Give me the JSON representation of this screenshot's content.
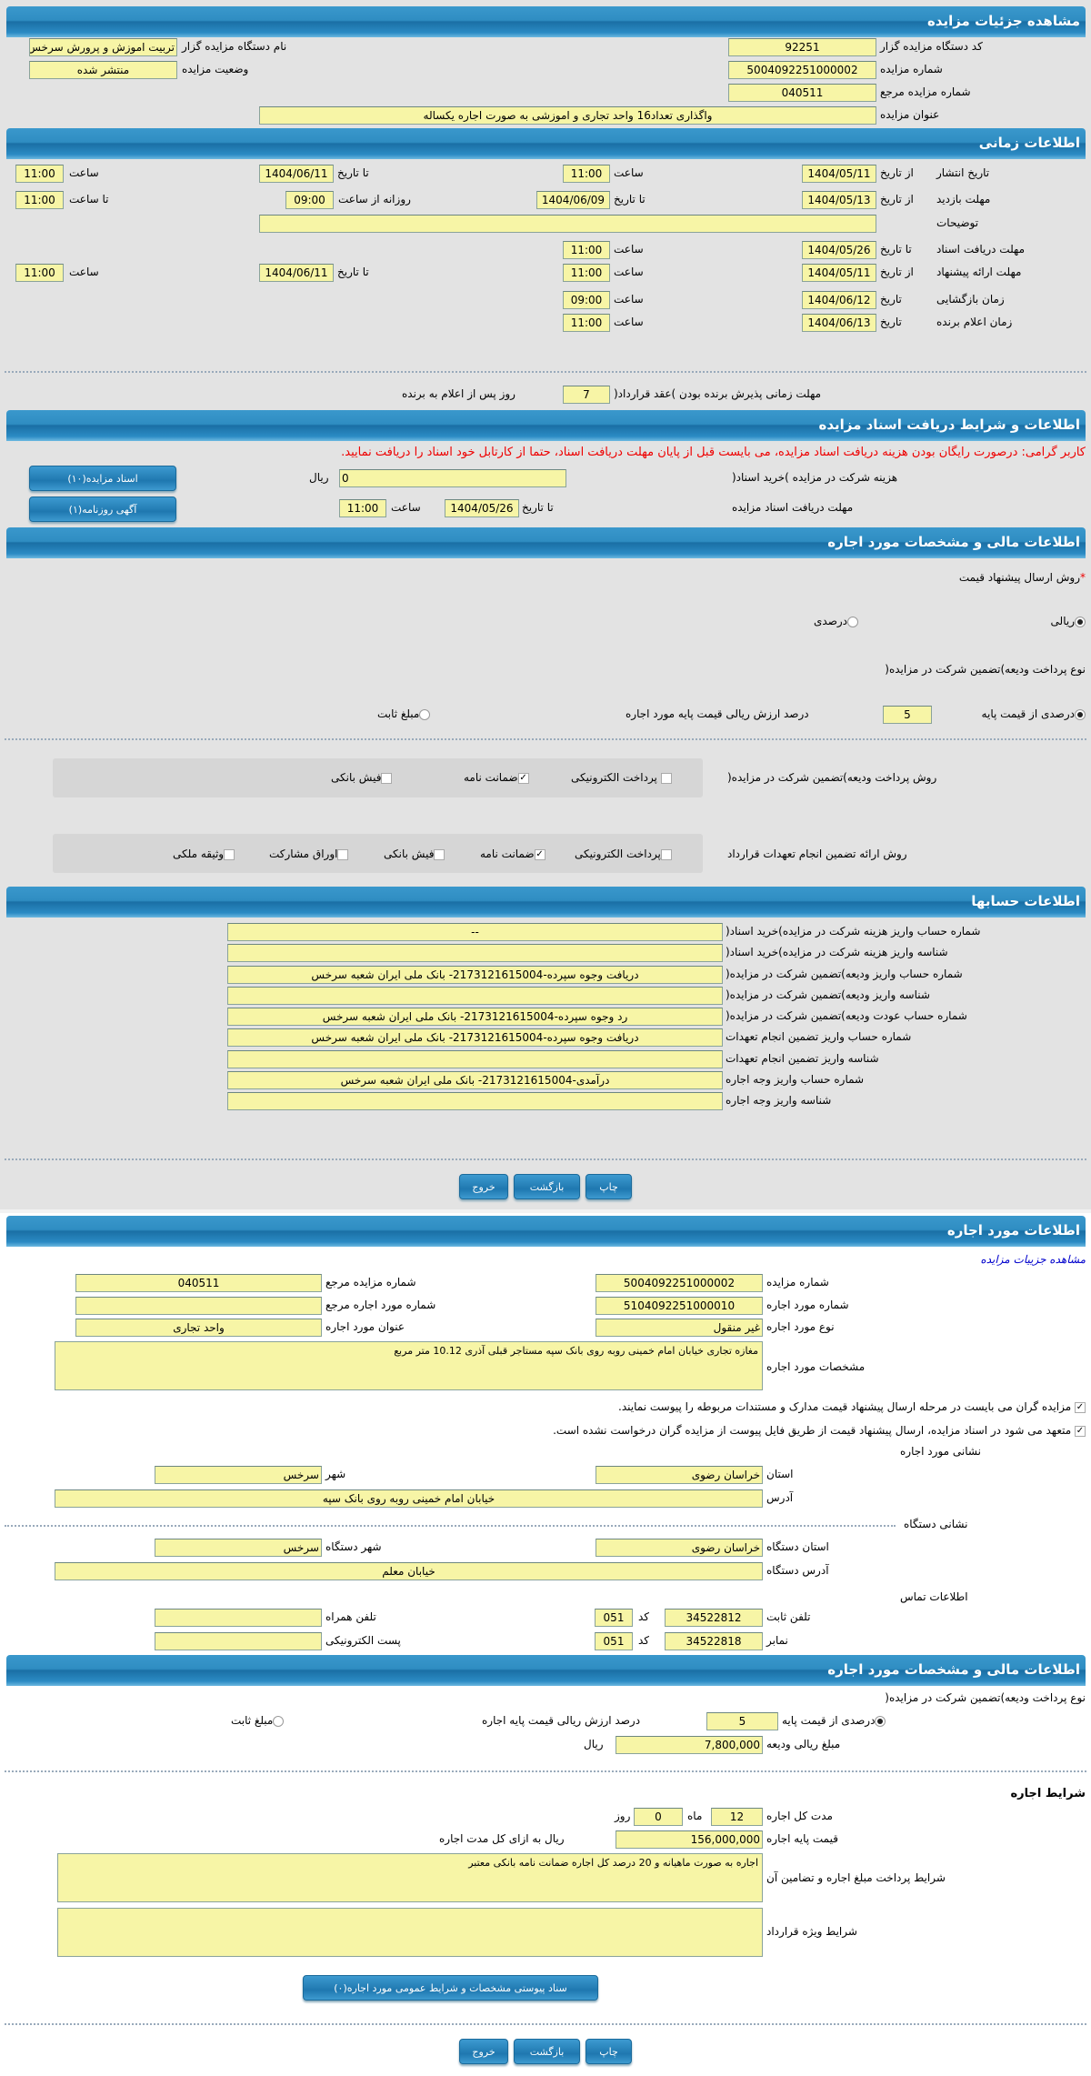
{
  "colors": {
    "header": "#2f8dc2",
    "field": "#f7f5a6",
    "warning": "#ee0000",
    "link": "#0000cc"
  },
  "s1": {
    "title": "مشاهده جزئیات مزایده",
    "org_code_label": "کد دستگاه مزایده گزار",
    "org_code": "92251",
    "org_name_label": "نام دستگاه مزایده گزار",
    "org_name": "تربیت اموزش و پرورش سرخس",
    "auction_no_label": "شماره مزایده",
    "auction_no": "5004092251000002",
    "status_label": "وضعیت مزایده",
    "status": "منتشر شده",
    "ref_no_label": "شماره مزایده مرجع",
    "ref_no": "040511",
    "subject_label": "عنوان مزایده",
    "subject": "واگذاری تعداد16 واحد تجاری و اموزشی به صورت اجاره یکساله"
  },
  "s2": {
    "title": "اطلاعات زمانی",
    "from_date": "از تاریخ",
    "to_date": "تا تاریخ",
    "date": "تاریخ",
    "hour": "ساعت",
    "to_hour": "تا ساعت",
    "daily_from": "روزانه از ساعت",
    "publish_label": "تاریخ انتشار",
    "publish_from": "1404/05/11",
    "publish_from_time": "11:00",
    "publish_to": "1404/06/11",
    "publish_to_time": "11:00",
    "visit_label": "مهلت بازدید",
    "visit_from": "1404/05/13",
    "visit_to": "1404/06/09",
    "visit_daily_from": "09:00",
    "visit_daily_to": "11:00",
    "notes_label": "توضیحات",
    "notes": "",
    "docs_label": "مهلت دریافت اسناد",
    "docs_to": "1404/05/26",
    "docs_time": "11:00",
    "offer_label": "مهلت ارائه پیشنهاد",
    "offer_from": "1404/05/11",
    "offer_from_time": "11:00",
    "offer_to": "1404/06/11",
    "offer_to_time": "11:00",
    "open_label": "زمان بازگشایی",
    "open_date": "1404/06/12",
    "open_time": "09:00",
    "winner_label": "زمان اعلام برنده",
    "winner_date": "1404/06/13",
    "winner_time": "11:00",
    "accept_label": "مهلت زمانی پذیرش برنده بودن )عقد قرارداد(",
    "accept_days": "7",
    "accept_suffix": "روز پس از اعلام به برنده"
  },
  "s3": {
    "title": "اطلاعات و شرایط دریافت اسناد مزایده",
    "warning": "کاربر گرامی: درصورت رایگان بودن هزینه دریافت اسناد مزایده، می بایست قبل از پایان مهلت دریافت اسناد، حتما از کارتابل خود اسناد را دریافت نمایید.",
    "fee_label": "هزینه شرکت در مزایده )خرید اسناد(",
    "fee": "0",
    "rial": "ریال",
    "deadline_label": "مهلت دریافت اسناد مزایده",
    "to_date": "تا تاریخ",
    "date": "1404/05/26",
    "hour": "ساعت",
    "time": "11:00",
    "docs_button": "اسناد مزایده(۱۰)",
    "ad_button": "آگهی روزنامه(۱)"
  },
  "s4": {
    "title": "اطلاعات مالی و مشخصات مورد اجاره",
    "price_method_label": "روش ارسال پیشنهاد قیمت",
    "required": "*",
    "price_rial": "ریالی",
    "price_percent": "درصدی",
    "deposit_type_label": "نوع پرداخت ودیعه)تضمین شرکت در مزایده(",
    "deposit_percent": "درصدی از قیمت پایه",
    "deposit_percent_value": "5",
    "deposit_percent_suffix": "درصد ارزش ریالی قیمت پایه مورد اجاره",
    "deposit_fixed": "مبلغ ثابت",
    "deposit_method_label": "روش پرداخت ودیعه)تضمین شرکت در مزایده(",
    "dm_electronic": "پرداخت الکترونیکی",
    "dm_guarantee": "ضمانت نامه",
    "dm_slip": "فیش بانکی",
    "commit_label": "روش ارائه تضمین انجام تعهدات قرارداد",
    "cm_electronic": "پرداخت الکترونیکی",
    "cm_guarantee": "ضمانت نامه",
    "cm_slip": "فیش بانکی",
    "cm_bonds": "اوراق مشارکت",
    "cm_property": "وثیقه ملکی"
  },
  "s5": {
    "title": "اطلاعات حسابها",
    "rows": [
      {
        "label": "شماره حساب واریز هزینه شرکت در مزایده)خرید اسناد(",
        "value": "--"
      },
      {
        "label": "شناسه واریز هزینه شرکت در مزایده)خرید اسناد(",
        "value": ""
      },
      {
        "label": "شماره حساب واریز ودیعه)تضمین شرکت در مزایده(",
        "value": "دریافت وجوه سپرده-2173121615004- بانک ملی ایران شعبه سرخس"
      },
      {
        "label": "شناسه واریز ودیعه)تضمین شرکت در مزایده(",
        "value": ""
      },
      {
        "label": "شماره حساب عودت ودیعه)تضمین شرکت در مزایده(",
        "value": "رد وجوه سپرده-2173121615004- بانک ملی ایران شعبه سرخس"
      },
      {
        "label": "شماره حساب واریز تضمین انجام تعهدات",
        "value": "دریافت وجوه سپرده-2173121615004- بانک ملی ایران شعبه سرخس"
      },
      {
        "label": "شناسه واریز تضمین انجام تعهدات",
        "value": ""
      },
      {
        "label": "شماره حساب واریز وجه اجاره",
        "value": "درآمدی-2173121615004- بانک ملی ایران شعبه سرخس"
      },
      {
        "label": "شناسه واریز وجه اجاره",
        "value": ""
      }
    ]
  },
  "buttons": {
    "print": "چاپ",
    "back": "بازگشت",
    "exit": "خروج"
  },
  "s6": {
    "title": "اطلاعات مورد اجاره",
    "link": "مشاهده جزییات مزایده",
    "auction_no_label": "شماره مزایده",
    "auction_no": "5004092251000002",
    "ref_no_label": "شماره مزایده مرجع",
    "ref_no": "040511",
    "item_no_label": "شماره مورد اجاره",
    "item_no": "5104092251000010",
    "item_ref_label": "شماره مورد اجاره مرجع",
    "item_ref": "",
    "item_type_label": "نوع مورد اجاره",
    "item_type": "غیر منقول",
    "item_title_label": "عنوان مورد اجاره",
    "item_title": "واحد تجاری",
    "spec_label": "مشخصات مورد اجاره",
    "spec": "مغازه تجاری خیابان امام خمینی  روبه روی بانک سپه مستاجر قبلی آذری 10.12 متر مربع",
    "check1": "مزایده گران می بایست در مرحله ارسال پیشنهاد قیمت مدارک و مستندات مربوطه را پیوست نمایند.",
    "check2": "متعهد می شود در اسناد مزایده، ارسال پیشنهاد قیمت از طریق فایل پیوست از مزایده گران درخواست نشده است.",
    "item_address_title": "نشانی مورد اجاره",
    "province_label": "استان",
    "province": "خراسان رضوی",
    "city_label": "شهر",
    "city": "سرخس",
    "address_label": "آدرس",
    "address": "خیابان امام خمینی  روبه روی بانک سپه",
    "org_address_title": "نشانی دستگاه",
    "org_province_label": "استان دستگاه",
    "org_province": "خراسان رضوی",
    "org_city_label": "شهر دستگاه",
    "org_city": "سرخس",
    "org_address_label": "آدرس دستگاه",
    "org_address": "خیابان معلم",
    "contact_title": "اطلاعات تماس",
    "phone_label": "تلفن ثابت",
    "phone": "34522812",
    "code_label": "کد",
    "phone_code": "051",
    "mobile_label": "تلفن همراه",
    "mobile": "",
    "fax_label": "نمابر",
    "fax": "34522818",
    "fax_code": "051",
    "email_label": "پست الکترونیکی",
    "email": ""
  },
  "s7": {
    "title": "اطلاعات مالی و مشخصات مورد اجاره",
    "deposit_type_label": "نوع پرداخت ودیعه)تضمین شرکت در مزایده(",
    "deposit_percent": "درصدی از قیمت پایه",
    "deposit_percent_value": "5",
    "deposit_percent_suffix": "درصد ارزش ریالی قیمت پایه اجاره",
    "deposit_fixed": "مبلغ ثابت",
    "deposit_amount_label": "مبلغ ریالی ودیعه",
    "deposit_amount": "7,800,000",
    "rial": "ریال",
    "terms_title": "شرایط اجاره",
    "duration_label": "مدت کل اجاره",
    "months": "12",
    "month_label": "ماه",
    "days": "0",
    "day_label": "روز",
    "base_price_label": "قیمت پایه اجاره",
    "base_price": "156,000,000",
    "base_price_suffix": "ریال به ازای کل مدت اجاره",
    "payment_terms_label": "شرایط پرداخت مبلغ اجاره و تضامین آن",
    "payment_terms": "اجاره به صورت ماهیانه و 20 درصد کل اجاره ضمانت نامه بانکی معتبر",
    "special_terms_label": "شرایط ویژه قرارداد",
    "special_terms": "",
    "attach_button": "سناد پیوستی مشخصات و شرایط عمومی مورد اجاره(۰)"
  }
}
